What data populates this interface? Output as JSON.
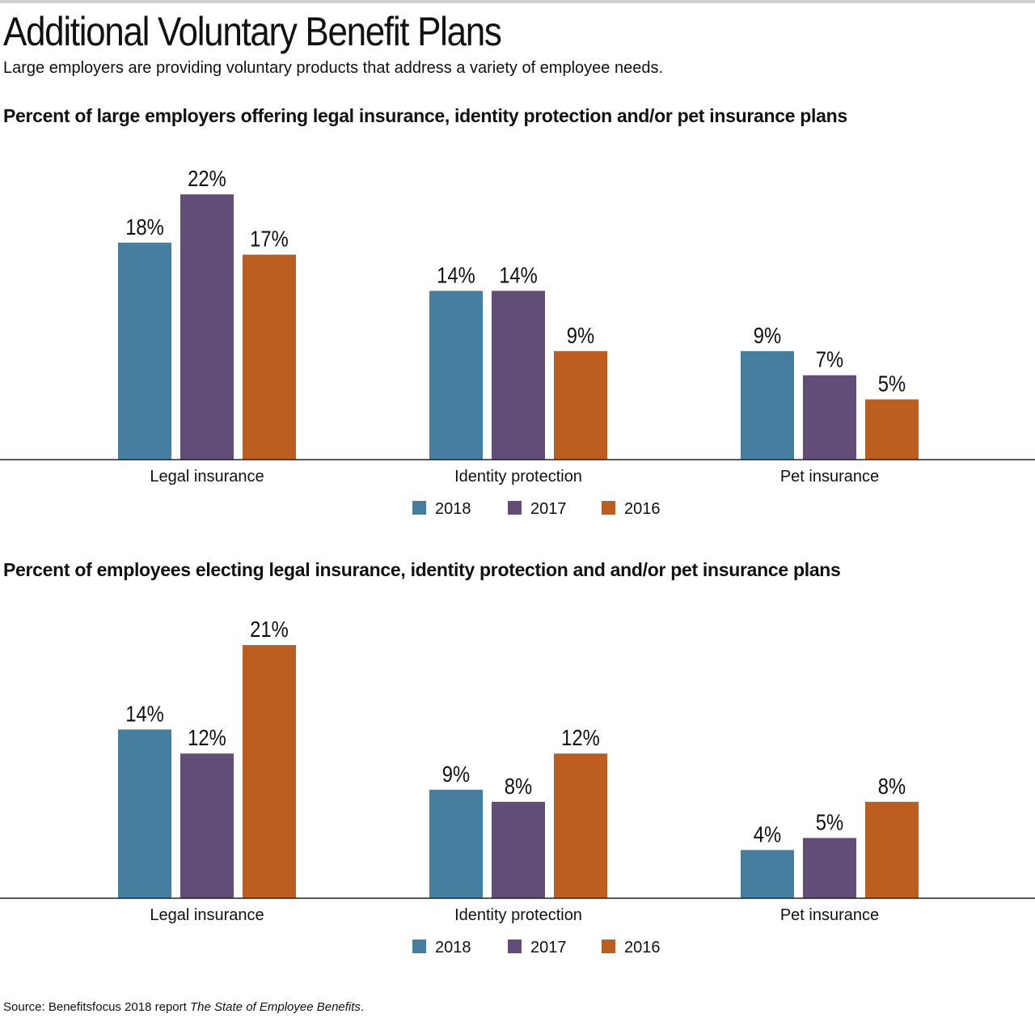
{
  "header": {
    "title": "Additional Voluntary Benefit Plans",
    "subtitle": "Large employers are providing voluntary products that address a variety of employee needs."
  },
  "colors": {
    "2018": "#457e9e",
    "2017": "#624c78",
    "2016": "#bb5e1f"
  },
  "chart_data": [
    {
      "type": "bar",
      "title": "Percent of large employers offering legal insurance, identity protection and/or pet insurance plans",
      "categories": [
        "Legal insurance",
        "Identity protection",
        "Pet insurance"
      ],
      "series": [
        {
          "name": "2018",
          "values": [
            18,
            14,
            9
          ],
          "labels": [
            "18%",
            "14%",
            "9%"
          ]
        },
        {
          "name": "2017",
          "values": [
            22,
            14,
            7
          ],
          "labels": [
            "22%",
            "14%",
            "7%"
          ]
        },
        {
          "name": "2016",
          "values": [
            17,
            9,
            5
          ],
          "labels": [
            "17%",
            "9%",
            "5%"
          ]
        }
      ],
      "xlabel": "",
      "ylabel": "",
      "ylim": [
        0,
        25
      ],
      "grid": false,
      "legend": "bottom-center"
    },
    {
      "type": "bar",
      "title": "Percent of employees electing legal insurance, identity protection and and/or pet insurance plans",
      "categories": [
        "Legal insurance",
        "Identity protection",
        "Pet insurance"
      ],
      "series": [
        {
          "name": "2018",
          "values": [
            14,
            9,
            4
          ],
          "labels": [
            "14%",
            "9%",
            "4%"
          ]
        },
        {
          "name": "2017",
          "values": [
            12,
            8,
            5
          ],
          "labels": [
            "12%",
            "8%",
            "5%"
          ]
        },
        {
          "name": "2016",
          "values": [
            21,
            12,
            8
          ],
          "labels": [
            "21%",
            "12%",
            "8%"
          ]
        }
      ],
      "xlabel": "",
      "ylabel": "",
      "ylim": [
        0,
        25
      ],
      "grid": false,
      "legend": "bottom-center"
    }
  ],
  "footer": {
    "source_prefix": "Source: Benefitsfocus 2018 report ",
    "source_title": "The State of Employee Benefits",
    "source_suffix": "."
  }
}
